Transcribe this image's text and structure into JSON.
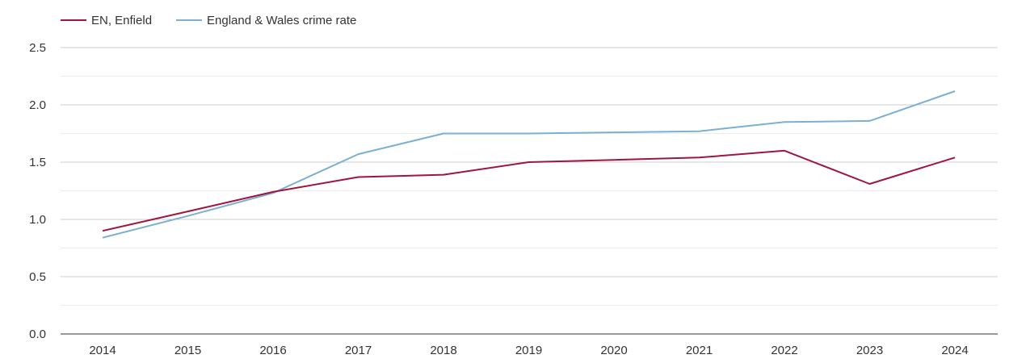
{
  "chart_data": {
    "type": "line",
    "title": "",
    "xlabel": "",
    "ylabel": "",
    "categories": [
      "2014",
      "2015",
      "2016",
      "2017",
      "2018",
      "2019",
      "2020",
      "2021",
      "2022",
      "2023",
      "2024"
    ],
    "ylim": [
      0,
      2.5
    ],
    "yticks": [
      "0.0",
      "0.5",
      "1.0",
      "1.5",
      "2.0",
      "2.5"
    ],
    "grid": true,
    "legend_position": "top-left",
    "series": [
      {
        "name": "EN, Enfield",
        "color": "#a0153e",
        "values": [
          0.9,
          1.07,
          1.24,
          1.37,
          1.39,
          1.5,
          1.52,
          1.54,
          1.6,
          1.31,
          1.54
        ]
      },
      {
        "name": "England & Wales crime rate",
        "color": "#7bafd4",
        "values": [
          0.84,
          1.03,
          1.23,
          1.57,
          1.75,
          1.75,
          1.76,
          1.77,
          1.85,
          1.86,
          2.12
        ]
      }
    ]
  }
}
